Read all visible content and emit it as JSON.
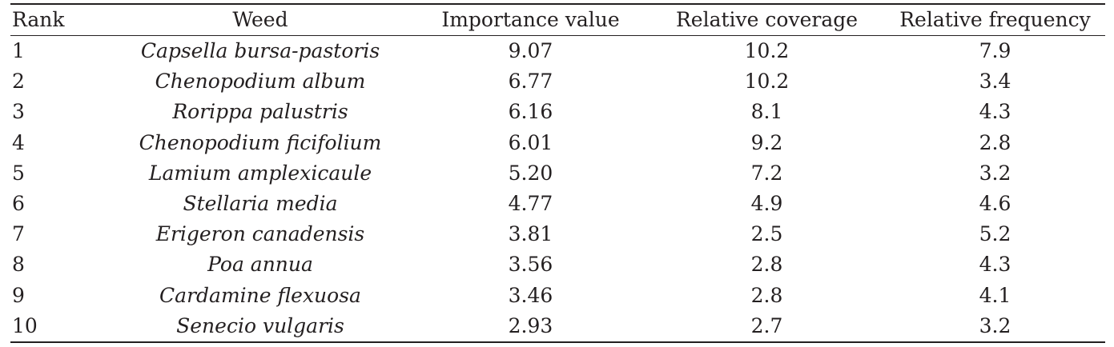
{
  "table": {
    "headers": {
      "rank": "Rank",
      "weed": "Weed",
      "importance_value": "Importance value",
      "relative_coverage": "Relative coverage",
      "relative_frequency": "Relative frequency"
    },
    "rows": [
      {
        "rank": "1",
        "weed": "Capsella bursa-pastoris",
        "importance_value": "9.07",
        "relative_coverage": "10.2",
        "relative_frequency": "7.9"
      },
      {
        "rank": "2",
        "weed": "Chenopodium album",
        "importance_value": "6.77",
        "relative_coverage": "10.2",
        "relative_frequency": "3.4"
      },
      {
        "rank": "3",
        "weed": "Rorippa palustris",
        "importance_value": "6.16",
        "relative_coverage": "8.1",
        "relative_frequency": "4.3"
      },
      {
        "rank": "4",
        "weed": "Chenopodium ficifolium",
        "importance_value": "6.01",
        "relative_coverage": "9.2",
        "relative_frequency": "2.8"
      },
      {
        "rank": "5",
        "weed": "Lamium amplexicaule",
        "importance_value": "5.20",
        "relative_coverage": "7.2",
        "relative_frequency": "3.2"
      },
      {
        "rank": "6",
        "weed": "Stellaria media",
        "importance_value": "4.77",
        "relative_coverage": "4.9",
        "relative_frequency": "4.6"
      },
      {
        "rank": "7",
        "weed": "Erigeron canadensis",
        "importance_value": "3.81",
        "relative_coverage": "2.5",
        "relative_frequency": "5.2"
      },
      {
        "rank": "8",
        "weed": "Poa annua",
        "importance_value": "3.56",
        "relative_coverage": "2.8",
        "relative_frequency": "4.3"
      },
      {
        "rank": "9",
        "weed": "Cardamine flexuosa",
        "importance_value": "3.46",
        "relative_coverage": "2.8",
        "relative_frequency": "4.1"
      },
      {
        "rank": "10",
        "weed": "Senecio vulgaris",
        "importance_value": "2.93",
        "relative_coverage": "2.7",
        "relative_frequency": "3.2"
      }
    ]
  }
}
